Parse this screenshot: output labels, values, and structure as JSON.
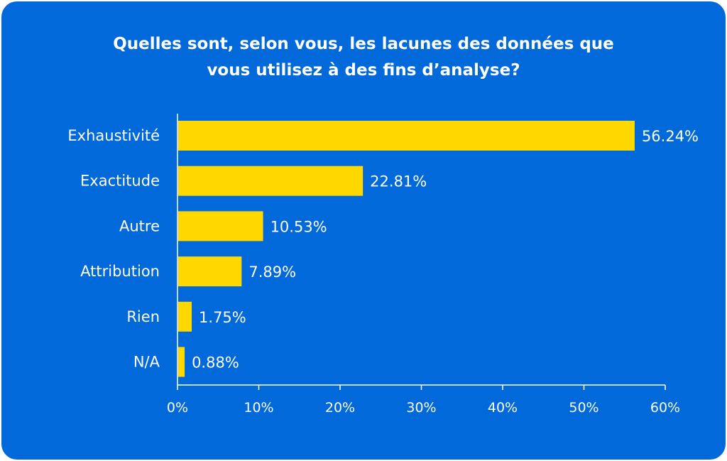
{
  "chart_data": {
    "type": "bar",
    "orientation": "horizontal",
    "title": "Quelles sont, selon vous, les lacunes des données que\nvous utilisez à des fins d’analyse?",
    "categories": [
      "Exhaustivité",
      "Exactitude",
      "Autre",
      "Attribution",
      "Rien",
      "N/A"
    ],
    "values": [
      56.24,
      22.81,
      10.53,
      7.89,
      1.75,
      0.88
    ],
    "value_labels": [
      "56.24%",
      "22.81%",
      "10.53%",
      "7.89%",
      "1.75%",
      "0.88%"
    ],
    "xlim": [
      0,
      60
    ],
    "x_ticks": [
      0,
      10,
      20,
      30,
      40,
      50,
      60
    ],
    "x_tick_labels": [
      "0%",
      "10%",
      "20%",
      "30%",
      "40%",
      "50%",
      "60%"
    ],
    "xlabel": "",
    "ylabel": "",
    "grid": false,
    "legend": "none"
  },
  "colors": {
    "background": "#0169d9",
    "bar": "#ffd800",
    "text": "#ffffff",
    "axis": "#ffffff"
  }
}
